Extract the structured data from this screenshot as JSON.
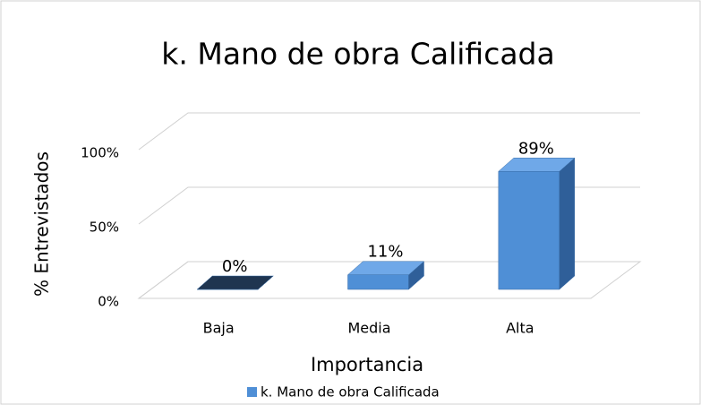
{
  "chart_data": {
    "type": "bar3d",
    "title": "k. Mano de obra Calificada",
    "categories": [
      "Baja",
      "Media",
      "Alta"
    ],
    "series": [
      {
        "name": "k. Mano de obra Calificada",
        "color": "#4f8fd6",
        "values": [
          0,
          11,
          89
        ],
        "value_labels": [
          "0%",
          "11%",
          "89%"
        ]
      }
    ],
    "xlabel": "Importancia",
    "ylabel": "% Entrevistados",
    "ylim": [
      0,
      100
    ],
    "yticks": [
      {
        "value": 0,
        "label": "0%"
      },
      {
        "value": 50,
        "label": "50%"
      },
      {
        "value": 100,
        "label": "100%"
      }
    ],
    "grid": true,
    "legend": "bottom"
  }
}
